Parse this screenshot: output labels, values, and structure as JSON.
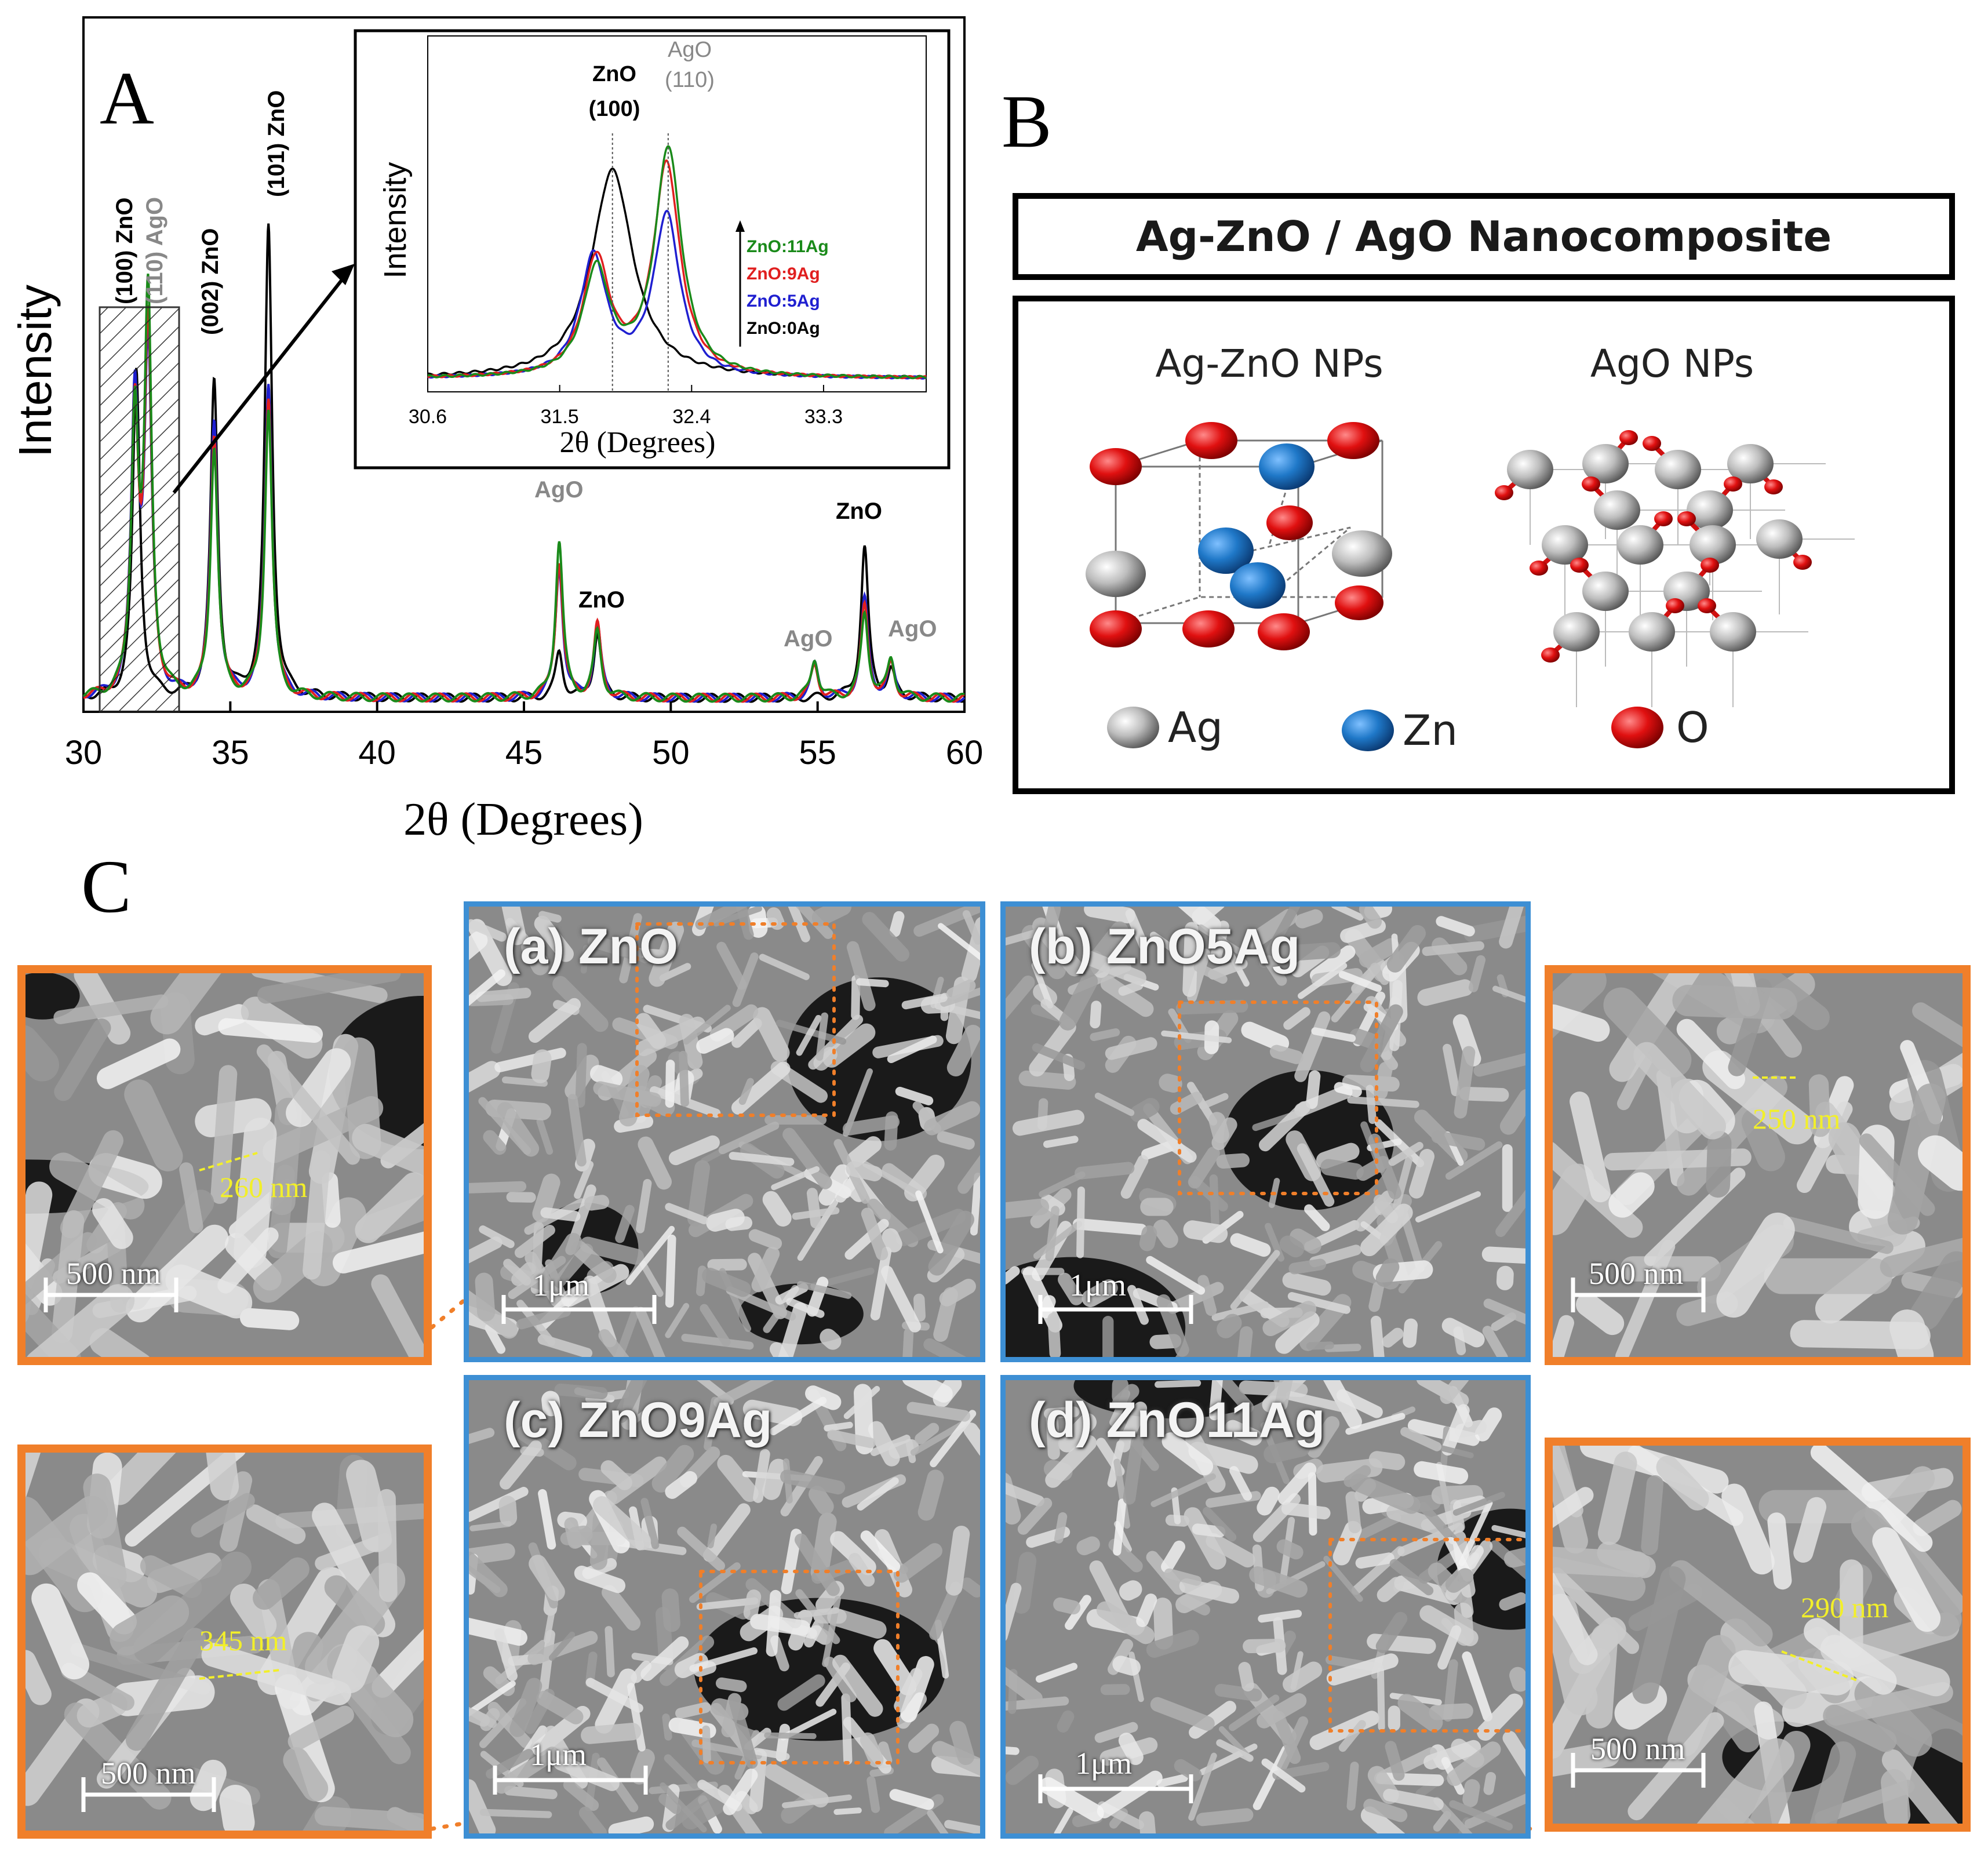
{
  "panels": {
    "a": "A",
    "b": "B",
    "c": "C"
  },
  "chart_data": [
    {
      "type": "line",
      "xlabel": "2θ (Degrees)",
      "ylabel": "Intensity",
      "xlim": [
        30,
        60
      ],
      "xticks": [
        30,
        35,
        40,
        45,
        50,
        55,
        60
      ],
      "grid": false,
      "series_colors": {
        "ZnO:0Ag": "#000000",
        "ZnO:5Ag": "#1f1fd0",
        "ZnO:9Ag": "#e01f1f",
        "ZnO:11Ag": "#1a8a1a"
      },
      "peaks_deg": {
        "ZnO:0Ag": [
          [
            31.8,
            0.5
          ],
          [
            34.45,
            0.48
          ],
          [
            36.3,
            0.72
          ],
          [
            46.2,
            0.07
          ],
          [
            47.5,
            0.1
          ],
          [
            56.6,
            0.23
          ],
          [
            57.5,
            0.04
          ]
        ],
        "ZnO:5Ag": [
          [
            31.75,
            0.45
          ],
          [
            32.2,
            0.52
          ],
          [
            34.45,
            0.42
          ],
          [
            36.3,
            0.48
          ],
          [
            46.2,
            0.2
          ],
          [
            47.5,
            0.11
          ],
          [
            54.9,
            0.05
          ],
          [
            56.6,
            0.15
          ],
          [
            57.5,
            0.05
          ]
        ],
        "ZnO:9Ag": [
          [
            31.75,
            0.43
          ],
          [
            32.2,
            0.55
          ],
          [
            34.45,
            0.4
          ],
          [
            36.3,
            0.46
          ],
          [
            46.2,
            0.21
          ],
          [
            47.5,
            0.11
          ],
          [
            54.9,
            0.05
          ],
          [
            56.6,
            0.14
          ],
          [
            57.5,
            0.05
          ]
        ],
        "ZnO:11Ag": [
          [
            31.75,
            0.42
          ],
          [
            32.2,
            0.6
          ],
          [
            34.45,
            0.38
          ],
          [
            36.3,
            0.44
          ],
          [
            46.2,
            0.24
          ],
          [
            47.5,
            0.1
          ],
          [
            54.9,
            0.06
          ],
          [
            56.6,
            0.13
          ],
          [
            57.5,
            0.06
          ]
        ]
      },
      "annotations": [
        {
          "line1": "(100) ZnO",
          "line2": "(110) AgO"
        },
        {
          "text": "(002) ZnO"
        },
        {
          "text": "(101) ZnO"
        },
        {
          "text": "AgO"
        },
        {
          "text": "ZnO"
        },
        {
          "text": "AgO"
        },
        {
          "text": "ZnO"
        },
        {
          "text": "AgO"
        }
      ]
    },
    {
      "type": "line",
      "xlabel": "2θ (Degrees)",
      "ylabel": "Intensity",
      "xlim": [
        30.6,
        34.0
      ],
      "xticks": [
        30.6,
        31.5,
        32.4,
        33.3
      ],
      "xtick_labels": [
        "30.6",
        "31.5",
        "32.4",
        "33.3"
      ],
      "legend": [
        "ZnO:11Ag",
        "ZnO:9Ag",
        "ZnO:5Ag",
        "ZnO:0Ag"
      ],
      "legend_placement": "right",
      "peak_labels": [
        {
          "name": "ZnO",
          "hkl": "(100)"
        },
        {
          "name": "AgO",
          "hkl": "(110)"
        }
      ],
      "peaks_deg": {
        "ZnO:0Ag": [
          [
            31.86,
            0.75
          ]
        ],
        "ZnO:5Ag": [
          [
            31.73,
            0.43
          ],
          [
            32.23,
            0.58
          ]
        ],
        "ZnO:9Ag": [
          [
            31.75,
            0.42
          ],
          [
            32.23,
            0.76
          ]
        ],
        "ZnO:11Ag": [
          [
            31.75,
            0.38
          ],
          [
            32.24,
            0.82
          ]
        ]
      }
    }
  ],
  "structure": {
    "title": "Ag-ZnO / AgO Nanocomposite",
    "left_label": "Ag-ZnO NPs",
    "right_label": "AgO NPs",
    "legend": [
      {
        "symbol": "Ag",
        "color": "#b5b5b5"
      },
      {
        "symbol": "Zn",
        "color": "#1f78c8"
      },
      {
        "symbol": "O",
        "color": "#e01010"
      }
    ]
  },
  "sem": {
    "main": [
      {
        "label": "(a)  ZnO",
        "scale": "1μm"
      },
      {
        "label": "(b) ZnO5Ag",
        "scale": "1μm"
      },
      {
        "label": "(c) ZnO9Ag",
        "scale": "1μm"
      },
      {
        "label": "(d) ZnO11Ag",
        "scale": "1μm"
      }
    ],
    "zoom": [
      {
        "measure": "260 nm",
        "scale": "500 nm"
      },
      {
        "measure": "250 nm",
        "scale": "500 nm"
      },
      {
        "measure": "345 nm",
        "scale": "500 nm"
      },
      {
        "measure": "290 nm",
        "scale": "500 nm"
      }
    ]
  }
}
